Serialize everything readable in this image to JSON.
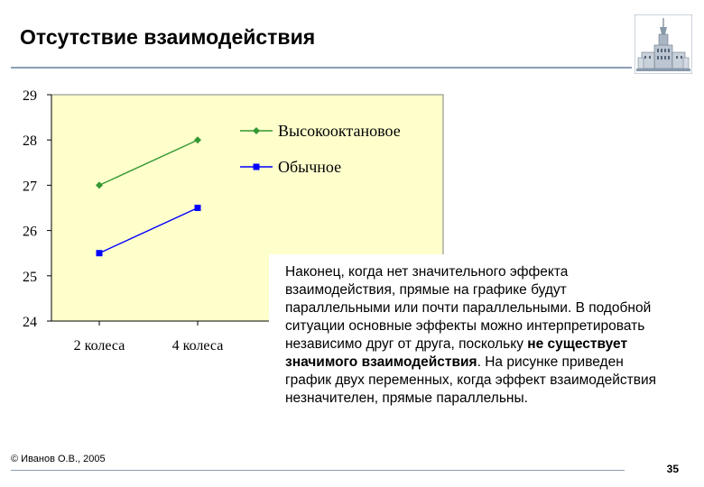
{
  "slide": {
    "title": "Отсутствие взаимодействия",
    "callout": {
      "part1": "Наконец, когда нет значительного эффекта взаимодействия, прямые на графике будут параллельными или почти параллельными. В подобной ситуации основные эффекты можно интерпретировать независимо друг от друга, поскольку ",
      "bold": "не существует значимого взаимодействия",
      "part2": ". На рисунке приведен график двух переменных, когда эффект взаимодействия незначителен, прямые параллельны."
    },
    "footer_copyright": "© Иванов О.В., 2005",
    "page_number": "35"
  },
  "colors": {
    "plot_background": "#ffffcc",
    "series_high_octane": "#339933",
    "series_regular": "#0000ff",
    "rules": "#8a9fb3"
  },
  "chart_data": {
    "type": "line",
    "categories": [
      "2 колеса",
      "4 колеса"
    ],
    "series": [
      {
        "name": "Высокооктановое",
        "values": [
          27,
          28
        ],
        "color": "#339933",
        "marker": "diamond"
      },
      {
        "name": "Обычное",
        "values": [
          25.5,
          26.5
        ],
        "color": "#0000ff",
        "marker": "square"
      }
    ],
    "ylim": [
      24,
      29
    ],
    "yticks": [
      24,
      25,
      26,
      27,
      28,
      29
    ],
    "legend": "top-right",
    "grid": false
  }
}
